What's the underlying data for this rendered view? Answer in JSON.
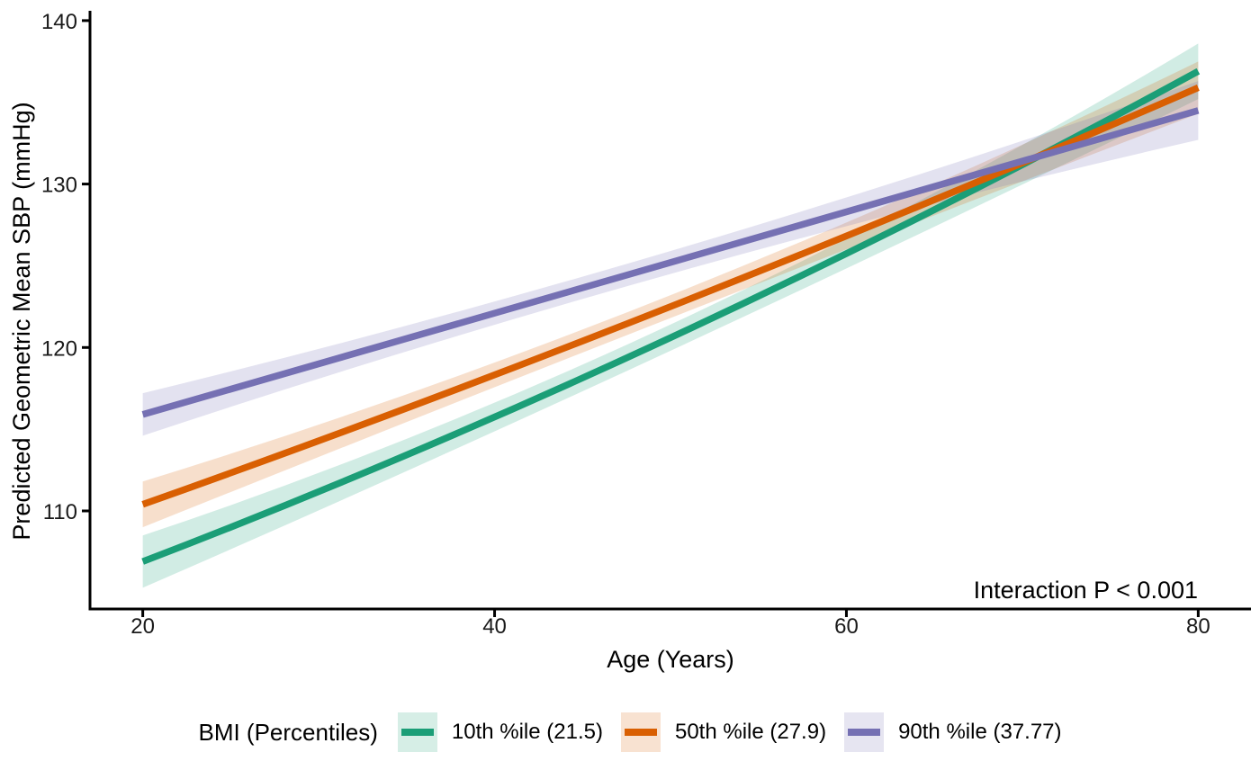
{
  "chart_data": {
    "type": "line",
    "title": "",
    "xlabel": "Age (Years)",
    "ylabel": "Predicted Geometric Mean SBP (mmHg)",
    "annotation": "Interaction P < 0.001",
    "x_ticks": [
      20,
      40,
      60,
      80
    ],
    "y_ticks": [
      110,
      120,
      130,
      140
    ],
    "xlim": [
      17,
      83
    ],
    "ylim": [
      104.0,
      140.6
    ],
    "grid": "off",
    "legend_position": "bottom",
    "legend_title": "BMI (Percentiles)",
    "series": [
      {
        "name": "10th %ile (21.5)",
        "color": "#1B9E77",
        "x": [
          20,
          50,
          80
        ],
        "y": [
          106.9,
          120.6,
          136.9
        ],
        "ci_half_width": [
          1.6,
          0.8,
          1.7
        ]
      },
      {
        "name": "50th %ile (27.9)",
        "color": "#D95F02",
        "x": [
          20,
          50,
          80
        ],
        "y": [
          110.4,
          122.5,
          135.9
        ],
        "ci_half_width": [
          1.4,
          0.7,
          1.6
        ]
      },
      {
        "name": "90th %ile (37.77)",
        "color": "#7570B3",
        "x": [
          20,
          50,
          80
        ],
        "y": [
          115.9,
          125.2,
          134.5
        ],
        "ci_half_width": [
          1.3,
          0.7,
          1.8
        ]
      }
    ]
  }
}
